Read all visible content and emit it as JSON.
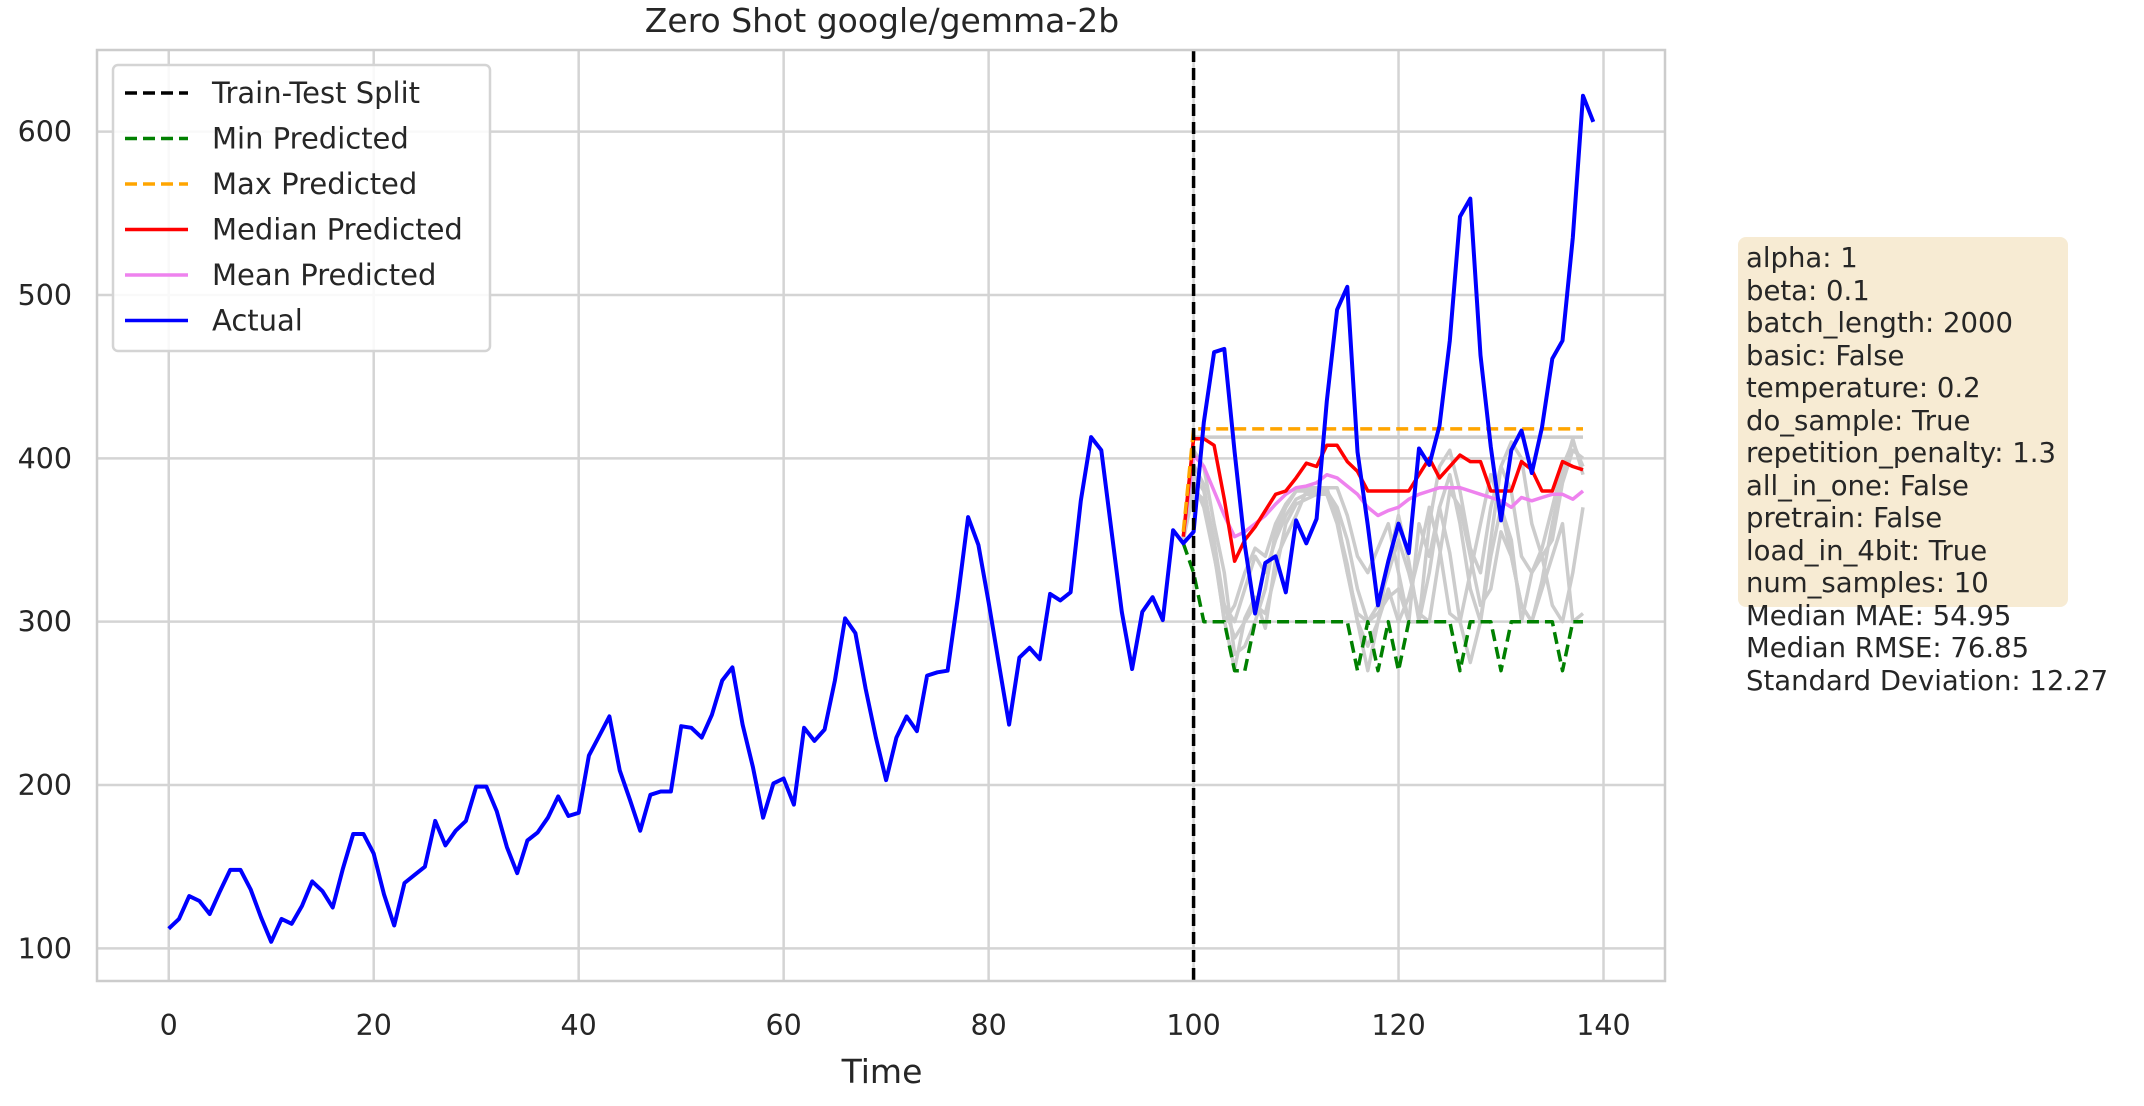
{
  "chart_data": {
    "type": "line",
    "title": "Zero Shot google/gemma-2b",
    "xlabel": "Time",
    "ylabel": "",
    "xlim": [
      -7,
      146
    ],
    "ylim": [
      80,
      650
    ],
    "x_ticks": [
      0,
      20,
      40,
      60,
      80,
      100,
      120,
      140
    ],
    "y_ticks": [
      100,
      200,
      300,
      400,
      500,
      600
    ],
    "grid": true,
    "legend_position": "upper left",
    "split_x": 100,
    "legend": [
      {
        "label": "Train-Test Split",
        "color": "#000000",
        "style": "dashed"
      },
      {
        "label": "Min Predicted",
        "color": "#008000",
        "style": "dashed"
      },
      {
        "label": "Max Predicted",
        "color": "#ffa500",
        "style": "dashed"
      },
      {
        "label": "Median Predicted",
        "color": "#ff0000",
        "style": "solid"
      },
      {
        "label": "Mean Predicted",
        "color": "#ee82ee",
        "style": "solid"
      },
      {
        "label": "Actual",
        "color": "#0000ff",
        "style": "solid"
      }
    ],
    "series": [
      {
        "name": "Actual",
        "color": "#0000ff",
        "style": "solid",
        "x_start": 0,
        "values": [
          112,
          118,
          132,
          129,
          121,
          135,
          148,
          148,
          136,
          119,
          104,
          118,
          115,
          126,
          141,
          135,
          125,
          149,
          170,
          170,
          158,
          133,
          114,
          140,
          145,
          150,
          178,
          163,
          172,
          178,
          199,
          199,
          184,
          162,
          146,
          166,
          171,
          180,
          193,
          181,
          183,
          218,
          230,
          242,
          209,
          191,
          172,
          194,
          196,
          196,
          236,
          235,
          229,
          243,
          264,
          272,
          237,
          211,
          180,
          201,
          204,
          188,
          235,
          227,
          234,
          264,
          302,
          293,
          259,
          229,
          203,
          229,
          242,
          233,
          267,
          269,
          270,
          315,
          364,
          347,
          312,
          274,
          237,
          278,
          284,
          277,
          317,
          313,
          318,
          374,
          413,
          405,
          355,
          306,
          271,
          306,
          315,
          301,
          356,
          348,
          355,
          422,
          465,
          467,
          404,
          347,
          305,
          336,
          340,
          318,
          362,
          348,
          363,
          435,
          491,
          505,
          404,
          359,
          310,
          337,
          360,
          342,
          406,
          396,
          420,
          472,
          548,
          559,
          463,
          407,
          362,
          405,
          417,
          391,
          419,
          461,
          472,
          535,
          622,
          606
        ]
      },
      {
        "name": "Min Predicted",
        "color": "#008000",
        "style": "dashed",
        "x_start": 99,
        "values": [
          348,
          330,
          300,
          300,
          300,
          270,
          270,
          300,
          300,
          300,
          300,
          300,
          300,
          300,
          300,
          300,
          300,
          270,
          300,
          270,
          300,
          270,
          300,
          300,
          300,
          300,
          300,
          270,
          300,
          300,
          300,
          270,
          300,
          300,
          300,
          300,
          300,
          270,
          300,
          300
        ]
      },
      {
        "name": "Max Predicted",
        "color": "#ffa500",
        "style": "dashed",
        "x_start": 99,
        "values": [
          355,
          418,
          418,
          418,
          418,
          418,
          418,
          418,
          418,
          418,
          418,
          418,
          418,
          418,
          418,
          418,
          418,
          418,
          418,
          418,
          418,
          418,
          418,
          418,
          418,
          418,
          418,
          418,
          418,
          418,
          418,
          418,
          418,
          418,
          418,
          418,
          418,
          418,
          418,
          418
        ]
      },
      {
        "name": "Median Predicted",
        "color": "#ff0000",
        "style": "solid",
        "x_start": 99,
        "values": [
          352,
          412,
          412,
          408,
          375,
          337,
          350,
          358,
          368,
          378,
          380,
          388,
          397,
          395,
          408,
          408,
          398,
          392,
          380,
          380,
          380,
          380,
          380,
          390,
          400,
          388,
          395,
          402,
          398,
          398,
          380,
          380,
          380,
          398,
          393,
          380,
          380,
          398,
          395,
          393
        ]
      },
      {
        "name": "Mean Predicted",
        "color": "#ee82ee",
        "style": "solid",
        "x_start": 99,
        "values": [
          352,
          402,
          395,
          380,
          365,
          352,
          355,
          360,
          365,
          372,
          378,
          382,
          383,
          385,
          390,
          388,
          383,
          378,
          370,
          365,
          368,
          370,
          375,
          378,
          380,
          382,
          382,
          382,
          380,
          378,
          376,
          374,
          370,
          376,
          374,
          376,
          378,
          378,
          375,
          380
        ]
      }
    ],
    "sample_series": [
      {
        "name": "",
        "color": "#cccccc",
        "x_start": 99,
        "values": [
          352,
          413,
          413,
          413,
          413,
          413,
          413,
          413,
          413,
          413,
          413,
          413,
          413,
          413,
          413,
          413,
          413,
          413,
          413,
          413,
          413,
          413,
          413,
          413,
          413,
          413,
          413,
          413,
          413,
          413,
          413,
          413,
          413,
          413,
          413,
          413,
          413,
          413,
          413,
          413
        ]
      },
      {
        "name": "",
        "color": "#cccccc",
        "x_start": 99,
        "values": [
          350,
          396,
          384,
          342,
          301,
          271,
          302,
          315,
          296,
          338,
          352,
          365,
          380,
          381,
          382,
          361,
          335,
          300,
          270,
          300,
          336,
          365,
          337,
          300,
          330,
          370,
          342,
          300,
          275,
          300,
          340,
          370,
          350,
          300,
          330,
          340,
          310,
          300,
          330,
          370
        ]
      },
      {
        "name": "",
        "color": "#cccccc",
        "x_start": 99,
        "values": [
          350,
          405,
          395,
          360,
          330,
          280,
          285,
          300,
          320,
          355,
          370,
          380,
          382,
          382,
          382,
          382,
          365,
          340,
          330,
          345,
          360,
          330,
          300,
          300,
          360,
          395,
          405,
          380,
          345,
          330,
          370,
          395,
          380,
          340,
          330,
          345,
          370,
          395,
          410,
          395
        ]
      },
      {
        "name": "",
        "color": "#cccccc",
        "x_start": 99,
        "values": [
          350,
          390,
          380,
          350,
          310,
          290,
          300,
          310,
          305,
          330,
          360,
          372,
          375,
          378,
          380,
          370,
          350,
          320,
          300,
          305,
          315,
          320,
          300,
          360,
          340,
          370,
          390,
          360,
          320,
          300,
          350,
          395,
          410,
          400,
          360,
          340,
          350,
          385,
          405,
          400
        ]
      },
      {
        "name": "",
        "color": "#cccccc",
        "x_start": 99,
        "values": [
          350,
          385,
          370,
          340,
          310,
          300,
          320,
          340,
          330,
          350,
          365,
          375,
          378,
          378,
          378,
          360,
          330,
          300,
          285,
          300,
          320,
          300,
          315,
          340,
          370,
          345,
          305,
          300,
          330,
          360,
          390,
          370,
          340,
          310,
          300,
          325,
          360,
          390,
          412,
          390
        ]
      },
      {
        "name": "",
        "color": "#cccccc",
        "x_start": 99,
        "values": [
          350,
          380,
          375,
          345,
          300,
          310,
          330,
          345,
          340,
          360,
          372,
          380,
          380,
          380,
          380,
          365,
          330,
          305,
          300,
          310,
          330,
          350,
          330,
          305,
          300,
          340,
          380,
          370,
          340,
          310,
          320,
          355,
          340,
          310,
          300,
          320,
          340,
          360,
          300,
          305
        ]
      }
    ]
  },
  "info_box": {
    "params": [
      "alpha: 1",
      "beta: 0.1",
      "batch_length: 2000",
      "basic: False",
      "temperature: 0.2",
      "do_sample: True",
      "repetition_penalty: 1.3",
      "all_in_one: False",
      "pretrain: False",
      "load_in_4bit: True",
      "num_samples: 10"
    ],
    "metrics": [
      "Median MAE: 54.95",
      "Median RMSE: 76.85",
      "Standard Deviation: 12.27"
    ]
  }
}
